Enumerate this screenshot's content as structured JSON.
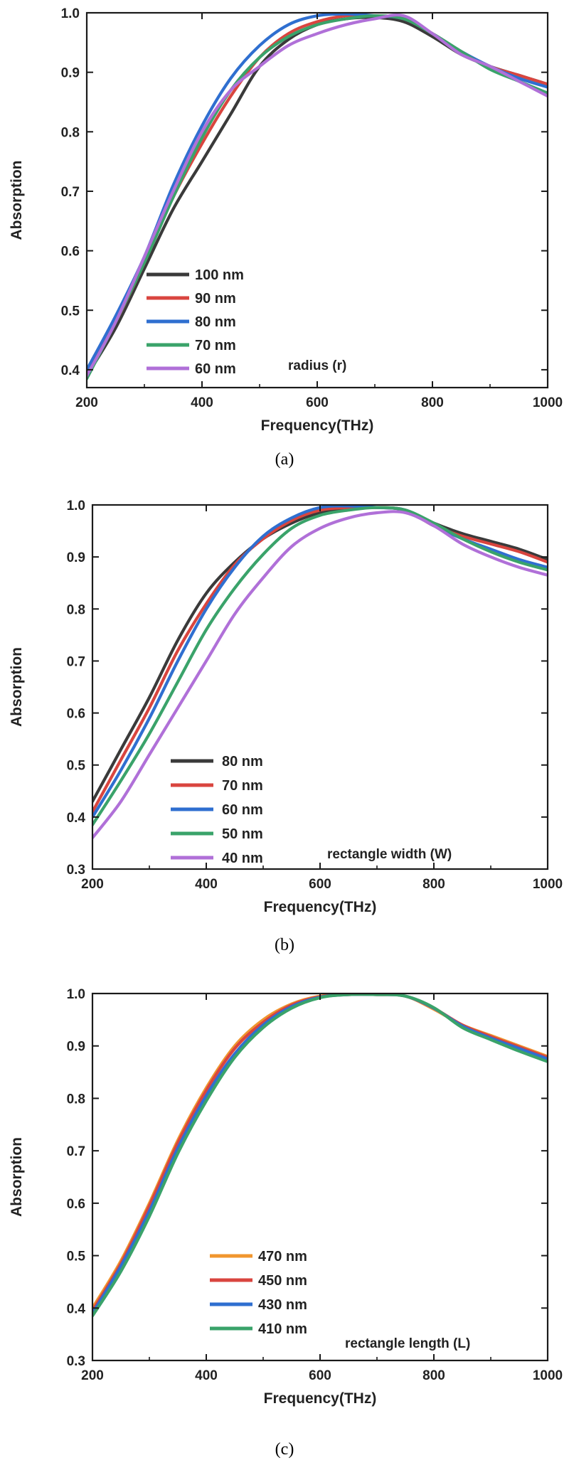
{
  "chart_data": [
    {
      "type": "line",
      "panel": "(a)",
      "xlabel": "Frequency(THz)",
      "ylabel": "Absorption",
      "xlim": [
        200,
        1000
      ],
      "ylim": [
        0.37,
        1.0
      ],
      "xticks": [
        200,
        400,
        600,
        800,
        1000
      ],
      "yticks": [
        0.4,
        0.5,
        0.6,
        0.7,
        0.8,
        0.9,
        1.0
      ],
      "annotation": "radius (r)",
      "legend_position": "bottom-left",
      "series": [
        {
          "name": "100 nm",
          "color": "#3a3a3a",
          "points": [
            [
              200,
              0.39
            ],
            [
              250,
              0.47
            ],
            [
              300,
              0.57
            ],
            [
              350,
              0.67
            ],
            [
              400,
              0.75
            ],
            [
              450,
              0.83
            ],
            [
              500,
              0.91
            ],
            [
              550,
              0.955
            ],
            [
              600,
              0.98
            ],
            [
              650,
              0.99
            ],
            [
              700,
              0.992
            ],
            [
              750,
              0.985
            ],
            [
              800,
              0.96
            ],
            [
              850,
              0.93
            ],
            [
              900,
              0.91
            ],
            [
              950,
              0.895
            ],
            [
              1000,
              0.88
            ]
          ]
        },
        {
          "name": "90 nm",
          "color": "#d9453f",
          "points": [
            [
              200,
              0.395
            ],
            [
              250,
              0.48
            ],
            [
              300,
              0.58
            ],
            [
              350,
              0.69
            ],
            [
              400,
              0.78
            ],
            [
              450,
              0.86
            ],
            [
              500,
              0.925
            ],
            [
              550,
              0.965
            ],
            [
              600,
              0.985
            ],
            [
              650,
              0.995
            ],
            [
              700,
              0.995
            ],
            [
              750,
              0.99
            ],
            [
              800,
              0.965
            ],
            [
              850,
              0.935
            ],
            [
              900,
              0.91
            ],
            [
              950,
              0.895
            ],
            [
              1000,
              0.88
            ]
          ]
        },
        {
          "name": "80 nm",
          "color": "#2f6fd0",
          "points": [
            [
              200,
              0.4
            ],
            [
              250,
              0.49
            ],
            [
              300,
              0.59
            ],
            [
              350,
              0.71
            ],
            [
              400,
              0.81
            ],
            [
              450,
              0.89
            ],
            [
              500,
              0.945
            ],
            [
              550,
              0.98
            ],
            [
              600,
              0.995
            ],
            [
              650,
              0.998
            ],
            [
              700,
              0.995
            ],
            [
              750,
              0.99
            ],
            [
              800,
              0.965
            ],
            [
              850,
              0.935
            ],
            [
              900,
              0.91
            ],
            [
              950,
              0.89
            ],
            [
              1000,
              0.875
            ]
          ]
        },
        {
          "name": "70 nm",
          "color": "#3aa36a",
          "points": [
            [
              200,
              0.385
            ],
            [
              250,
              0.48
            ],
            [
              300,
              0.58
            ],
            [
              350,
              0.69
            ],
            [
              400,
              0.79
            ],
            [
              450,
              0.87
            ],
            [
              500,
              0.925
            ],
            [
              550,
              0.96
            ],
            [
              600,
              0.98
            ],
            [
              650,
              0.99
            ],
            [
              700,
              0.995
            ],
            [
              750,
              0.99
            ],
            [
              800,
              0.965
            ],
            [
              850,
              0.935
            ],
            [
              900,
              0.905
            ],
            [
              950,
              0.885
            ],
            [
              1000,
              0.865
            ]
          ]
        },
        {
          "name": "60 nm",
          "color": "#b070d8",
          "points": [
            [
              200,
              0.39
            ],
            [
              250,
              0.48
            ],
            [
              300,
              0.59
            ],
            [
              350,
              0.7
            ],
            [
              400,
              0.8
            ],
            [
              450,
              0.87
            ],
            [
              500,
              0.91
            ],
            [
              550,
              0.945
            ],
            [
              600,
              0.965
            ],
            [
              650,
              0.98
            ],
            [
              700,
              0.99
            ],
            [
              750,
              0.995
            ],
            [
              800,
              0.965
            ],
            [
              850,
              0.93
            ],
            [
              900,
              0.91
            ],
            [
              950,
              0.885
            ],
            [
              1000,
              0.86
            ]
          ]
        }
      ]
    },
    {
      "type": "line",
      "panel": "(b)",
      "xlabel": "Frequency(THz)",
      "ylabel": "Absorption",
      "xlim": [
        200,
        1000
      ],
      "ylim": [
        0.3,
        1.0
      ],
      "xticks": [
        200,
        400,
        600,
        800,
        1000
      ],
      "yticks": [
        0.3,
        0.4,
        0.5,
        0.6,
        0.7,
        0.8,
        0.9,
        1.0
      ],
      "annotation": "rectangle width (W)",
      "legend_position": "bottom-left",
      "series": [
        {
          "name": "80 nm",
          "color": "#3a3a3a",
          "points": [
            [
              200,
              0.43
            ],
            [
              250,
              0.53
            ],
            [
              300,
              0.63
            ],
            [
              350,
              0.74
            ],
            [
              400,
              0.83
            ],
            [
              450,
              0.89
            ],
            [
              500,
              0.935
            ],
            [
              550,
              0.965
            ],
            [
              600,
              0.985
            ],
            [
              650,
              0.992
            ],
            [
              700,
              0.995
            ],
            [
              750,
              0.99
            ],
            [
              800,
              0.965
            ],
            [
              850,
              0.945
            ],
            [
              900,
              0.93
            ],
            [
              950,
              0.915
            ],
            [
              1000,
              0.895
            ]
          ]
        },
        {
          "name": "70 nm",
          "color": "#d9453f",
          "points": [
            [
              200,
              0.41
            ],
            [
              250,
              0.51
            ],
            [
              300,
              0.61
            ],
            [
              350,
              0.72
            ],
            [
              400,
              0.81
            ],
            [
              450,
              0.885
            ],
            [
              500,
              0.935
            ],
            [
              550,
              0.97
            ],
            [
              600,
              0.99
            ],
            [
              650,
              0.995
            ],
            [
              700,
              0.995
            ],
            [
              750,
              0.99
            ],
            [
              800,
              0.96
            ],
            [
              850,
              0.94
            ],
            [
              900,
              0.925
            ],
            [
              950,
              0.91
            ],
            [
              1000,
              0.89
            ]
          ]
        },
        {
          "name": "60 nm",
          "color": "#2f6fd0",
          "points": [
            [
              200,
              0.4
            ],
            [
              250,
              0.49
            ],
            [
              300,
              0.59
            ],
            [
              350,
              0.7
            ],
            [
              400,
              0.8
            ],
            [
              450,
              0.88
            ],
            [
              500,
              0.94
            ],
            [
              550,
              0.975
            ],
            [
              600,
              0.995
            ],
            [
              650,
              0.998
            ],
            [
              700,
              0.995
            ],
            [
              750,
              0.99
            ],
            [
              800,
              0.96
            ],
            [
              850,
              0.935
            ],
            [
              900,
              0.915
            ],
            [
              950,
              0.895
            ],
            [
              1000,
              0.88
            ]
          ]
        },
        {
          "name": "50 nm",
          "color": "#3aa36a",
          "points": [
            [
              200,
              0.385
            ],
            [
              250,
              0.47
            ],
            [
              300,
              0.56
            ],
            [
              350,
              0.66
            ],
            [
              400,
              0.76
            ],
            [
              450,
              0.84
            ],
            [
              500,
              0.905
            ],
            [
              550,
              0.955
            ],
            [
              600,
              0.98
            ],
            [
              650,
              0.99
            ],
            [
              700,
              0.995
            ],
            [
              750,
              0.99
            ],
            [
              800,
              0.965
            ],
            [
              850,
              0.935
            ],
            [
              900,
              0.91
            ],
            [
              950,
              0.89
            ],
            [
              1000,
              0.875
            ]
          ]
        },
        {
          "name": "40 nm",
          "color": "#b070d8",
          "points": [
            [
              200,
              0.36
            ],
            [
              250,
              0.43
            ],
            [
              300,
              0.52
            ],
            [
              350,
              0.61
            ],
            [
              400,
              0.7
            ],
            [
              450,
              0.79
            ],
            [
              500,
              0.86
            ],
            [
              550,
              0.92
            ],
            [
              600,
              0.955
            ],
            [
              650,
              0.975
            ],
            [
              700,
              0.985
            ],
            [
              750,
              0.985
            ],
            [
              800,
              0.96
            ],
            [
              850,
              0.925
            ],
            [
              900,
              0.9
            ],
            [
              950,
              0.88
            ],
            [
              1000,
              0.865
            ]
          ]
        }
      ]
    },
    {
      "type": "line",
      "panel": "(c)",
      "xlabel": "Frequency(THz)",
      "ylabel": "Absorption",
      "xlim": [
        200,
        1000
      ],
      "ylim": [
        0.3,
        1.0
      ],
      "xticks": [
        200,
        400,
        600,
        800,
        1000
      ],
      "yticks": [
        0.3,
        0.4,
        0.5,
        0.6,
        0.7,
        0.8,
        0.9,
        1.0
      ],
      "annotation": "rectangle length (L)",
      "legend_position": "bottom-left",
      "series": [
        {
          "name": "470 nm",
          "color": "#f0962e",
          "points": [
            [
              200,
              0.4
            ],
            [
              250,
              0.49
            ],
            [
              300,
              0.6
            ],
            [
              350,
              0.72
            ],
            [
              400,
              0.82
            ],
            [
              450,
              0.9
            ],
            [
              500,
              0.95
            ],
            [
              550,
              0.98
            ],
            [
              600,
              0.995
            ],
            [
              650,
              0.998
            ],
            [
              700,
              0.998
            ],
            [
              750,
              0.995
            ],
            [
              800,
              0.97
            ],
            [
              850,
              0.94
            ],
            [
              900,
              0.92
            ],
            [
              950,
              0.9
            ],
            [
              1000,
              0.88
            ]
          ]
        },
        {
          "name": "450 nm",
          "color": "#d9453f",
          "points": [
            [
              200,
              0.395
            ],
            [
              250,
              0.485
            ],
            [
              300,
              0.595
            ],
            [
              350,
              0.715
            ],
            [
              400,
              0.815
            ],
            [
              450,
              0.895
            ],
            [
              500,
              0.945
            ],
            [
              550,
              0.978
            ],
            [
              600,
              0.994
            ],
            [
              650,
              0.998
            ],
            [
              700,
              0.998
            ],
            [
              750,
              0.995
            ],
            [
              800,
              0.972
            ],
            [
              850,
              0.94
            ],
            [
              900,
              0.918
            ],
            [
              950,
              0.898
            ],
            [
              1000,
              0.878
            ]
          ]
        },
        {
          "name": "430 nm",
          "color": "#2f6fd0",
          "points": [
            [
              200,
              0.39
            ],
            [
              250,
              0.48
            ],
            [
              300,
              0.585
            ],
            [
              350,
              0.705
            ],
            [
              400,
              0.805
            ],
            [
              450,
              0.885
            ],
            [
              500,
              0.94
            ],
            [
              550,
              0.975
            ],
            [
              600,
              0.993
            ],
            [
              650,
              0.998
            ],
            [
              700,
              0.998
            ],
            [
              750,
              0.995
            ],
            [
              800,
              0.972
            ],
            [
              850,
              0.938
            ],
            [
              900,
              0.915
            ],
            [
              950,
              0.895
            ],
            [
              1000,
              0.875
            ]
          ]
        },
        {
          "name": "410 nm",
          "color": "#3aa36a",
          "points": [
            [
              200,
              0.385
            ],
            [
              250,
              0.47
            ],
            [
              300,
              0.575
            ],
            [
              350,
              0.695
            ],
            [
              400,
              0.795
            ],
            [
              450,
              0.878
            ],
            [
              500,
              0.935
            ],
            [
              550,
              0.972
            ],
            [
              600,
              0.992
            ],
            [
              650,
              0.998
            ],
            [
              700,
              0.998
            ],
            [
              750,
              0.995
            ],
            [
              800,
              0.973
            ],
            [
              850,
              0.935
            ],
            [
              900,
              0.912
            ],
            [
              950,
              0.89
            ],
            [
              1000,
              0.87
            ]
          ]
        }
      ]
    }
  ],
  "captions": [
    "(a)",
    "(b)",
    "(c)"
  ]
}
